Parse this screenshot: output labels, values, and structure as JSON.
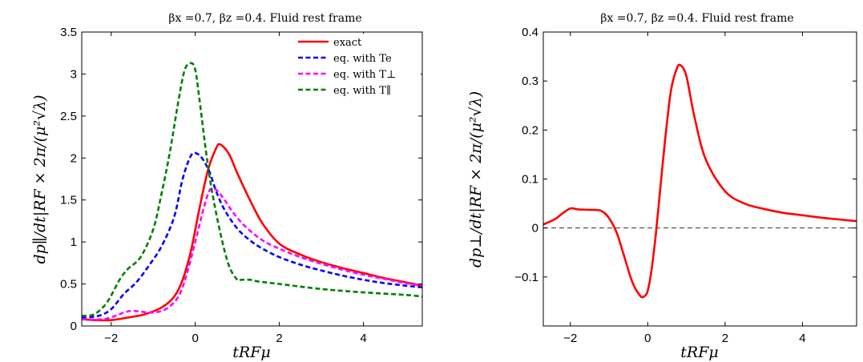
{
  "chart_data": [
    {
      "type": "line",
      "title": "βx =0.7, βz =0.4. Fluid rest frame",
      "xlabel": "tRFμ",
      "ylabel": "dp∥/dt|RF × 2π/(μ²√λ)",
      "xlim": [
        -2.7,
        5.4
      ],
      "ylim": [
        0,
        3.5
      ],
      "xticks": [
        -2,
        0,
        2,
        4
      ],
      "yticks": [
        0,
        0.5,
        1,
        1.5,
        2,
        2.5,
        3,
        3.5
      ],
      "xtick_labels": [
        "−2",
        "0",
        "2",
        "4"
      ],
      "ytick_labels": [
        "0",
        "0.5",
        "1",
        "1.5",
        "2",
        "2.5",
        "3",
        "3.5"
      ],
      "legend_placement": "top-right",
      "series": [
        {
          "name": "exact",
          "color": "#ff0000",
          "dash": "solid",
          "x": [
            -2.7,
            -2.4,
            -2.0,
            -1.6,
            -1.2,
            -0.8,
            -0.5,
            -0.3,
            -0.1,
            0.1,
            0.3,
            0.5,
            0.6,
            0.8,
            1.0,
            1.3,
            1.6,
            2.0,
            2.5,
            3.0,
            3.5,
            4.0,
            4.5,
            5.0,
            5.4
          ],
          "y": [
            0.08,
            0.07,
            0.07,
            0.1,
            0.14,
            0.22,
            0.35,
            0.55,
            0.9,
            1.4,
            1.85,
            2.12,
            2.16,
            2.05,
            1.82,
            1.5,
            1.22,
            0.98,
            0.85,
            0.76,
            0.69,
            0.63,
            0.57,
            0.52,
            0.48
          ]
        },
        {
          "name": "eq. with Te",
          "color": "#0000ff",
          "dash": "dashed",
          "x": [
            -2.7,
            -2.3,
            -2.0,
            -1.7,
            -1.4,
            -1.1,
            -0.8,
            -0.5,
            -0.3,
            -0.1,
            0.05,
            0.2,
            0.35,
            0.5,
            0.7,
            1.0,
            1.3,
            1.6,
            2.0,
            2.5,
            3.0,
            3.5,
            4.0,
            4.5,
            5.0,
            5.4
          ],
          "y": [
            0.1,
            0.12,
            0.2,
            0.38,
            0.52,
            0.72,
            0.95,
            1.3,
            1.75,
            2.03,
            2.05,
            1.97,
            1.82,
            1.6,
            1.38,
            1.16,
            1.02,
            0.92,
            0.82,
            0.73,
            0.66,
            0.6,
            0.55,
            0.51,
            0.48,
            0.46
          ]
        },
        {
          "name": "eq. with T⊥",
          "color": "#ff00ff",
          "dash": "dashed",
          "x": [
            -2.7,
            -2.2,
            -1.9,
            -1.7,
            -1.5,
            -1.3,
            -1.0,
            -0.7,
            -0.4,
            -0.2,
            0.0,
            0.2,
            0.35,
            0.5,
            0.7,
            0.9,
            1.2,
            1.6,
            2.0,
            2.5,
            3.0,
            3.5,
            4.0,
            4.5,
            5.0,
            5.4
          ],
          "y": [
            0.08,
            0.08,
            0.12,
            0.16,
            0.18,
            0.17,
            0.16,
            0.2,
            0.35,
            0.62,
            1.0,
            1.4,
            1.62,
            1.62,
            1.5,
            1.35,
            1.18,
            1.02,
            0.92,
            0.82,
            0.74,
            0.67,
            0.61,
            0.56,
            0.51,
            0.48
          ]
        },
        {
          "name": "eq. with T∥",
          "color": "#007f00",
          "dash": "dashed",
          "x": [
            -2.7,
            -2.4,
            -2.1,
            -1.8,
            -1.6,
            -1.3,
            -1.0,
            -0.8,
            -0.6,
            -0.4,
            -0.25,
            -0.1,
            0.0,
            0.1,
            0.25,
            0.4,
            0.6,
            0.8,
            1.0,
            1.1,
            1.3,
            1.5,
            2.0,
            3.0,
            4.0,
            5.0,
            5.4
          ],
          "y": [
            0.12,
            0.14,
            0.28,
            0.55,
            0.68,
            0.82,
            1.15,
            1.58,
            2.08,
            2.68,
            3.05,
            3.13,
            3.05,
            2.7,
            2.1,
            1.6,
            1.1,
            0.72,
            0.55,
            0.55,
            0.55,
            0.53,
            0.5,
            0.44,
            0.4,
            0.37,
            0.35
          ]
        }
      ]
    },
    {
      "type": "line",
      "title": "βx =0.7, βz =0.4. Fluid rest frame",
      "xlabel": "tRFμ",
      "ylabel": "dp⊥/dt|RF × 2π/(μ²√λ)",
      "xlim": [
        -2.7,
        5.4
      ],
      "ylim": [
        -0.2,
        0.4
      ],
      "xticks": [
        -2,
        0,
        2,
        4
      ],
      "yticks": [
        -0.1,
        0,
        0.1,
        0.2,
        0.3,
        0.4
      ],
      "xtick_labels": [
        "−2",
        "0",
        "2",
        "4"
      ],
      "ytick_labels": [
        "−0.1",
        "0",
        "0.1",
        "0.2",
        "0.3",
        "0.4"
      ],
      "reference_line_y": 0,
      "series": [
        {
          "color": "#ff0000",
          "dash": "solid",
          "x": [
            -2.7,
            -2.4,
            -2.2,
            -2.0,
            -1.8,
            -1.5,
            -1.2,
            -1.0,
            -0.8,
            -0.6,
            -0.4,
            -0.2,
            -0.1,
            0.0,
            0.1,
            0.2,
            0.3,
            0.45,
            0.6,
            0.75,
            0.85,
            1.0,
            1.2,
            1.5,
            2.0,
            2.5,
            3.0,
            3.5,
            4.0,
            4.5,
            5.0,
            5.4
          ],
          "y": [
            0.007,
            0.018,
            0.03,
            0.04,
            0.038,
            0.037,
            0.035,
            0.02,
            -0.01,
            -0.06,
            -0.11,
            -0.138,
            -0.14,
            -0.128,
            -0.085,
            -0.02,
            0.06,
            0.18,
            0.28,
            0.325,
            0.332,
            0.31,
            0.23,
            0.14,
            0.075,
            0.05,
            0.039,
            0.031,
            0.026,
            0.021,
            0.017,
            0.014
          ]
        }
      ]
    }
  ]
}
